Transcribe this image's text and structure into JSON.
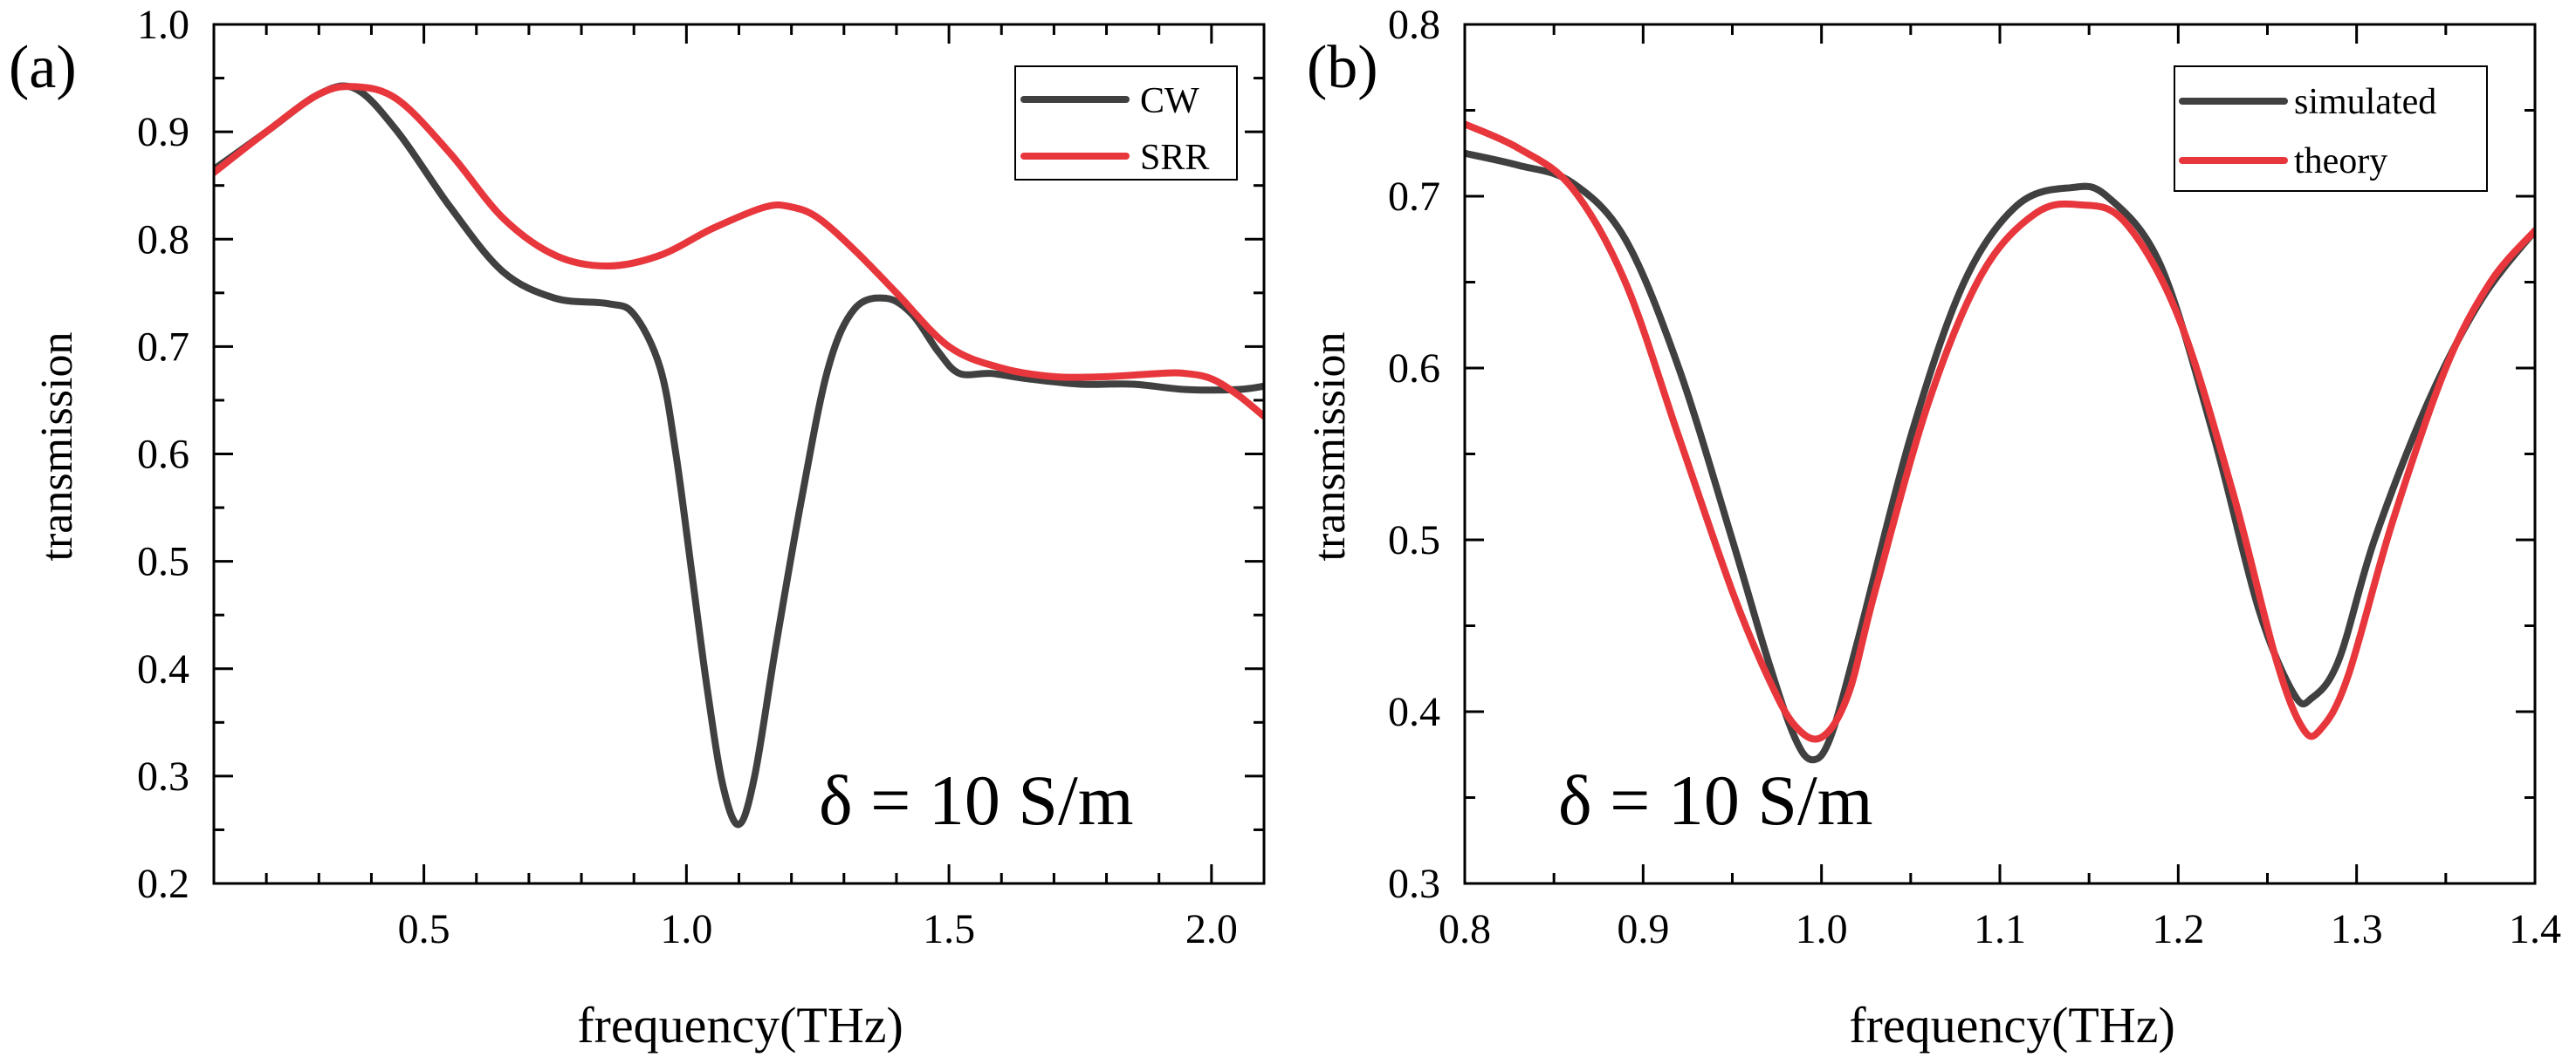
{
  "chart_data": [
    {
      "type": "line",
      "panel_label": "(a)",
      "xlabel": "frequency(THz)",
      "ylabel": "transmission",
      "xlim": [
        0.1,
        2.1
      ],
      "ylim": [
        0.2,
        1.0
      ],
      "xticks": [
        0.5,
        1.0,
        1.5,
        2.0
      ],
      "xtick_labels": [
        "0.5",
        "1.0",
        "1.5",
        "2.0"
      ],
      "yticks": [
        0.2,
        0.3,
        0.4,
        0.5,
        0.6,
        0.7,
        0.8,
        0.9,
        1.0
      ],
      "ytick_labels": [
        "0.2",
        "0.3",
        "0.4",
        "0.5",
        "0.6",
        "0.7",
        "0.8",
        "0.9",
        "1.0"
      ],
      "annotation": "δ = 10 S/m",
      "legend_position": "top-right",
      "series": [
        {
          "name": "CW",
          "color": "#404040",
          "x": [
            0.1,
            0.2,
            0.3,
            0.37,
            0.45,
            0.55,
            0.65,
            0.75,
            0.85,
            0.9,
            0.95,
            0.98,
            1.01,
            1.04,
            1.07,
            1.1,
            1.13,
            1.17,
            1.22,
            1.27,
            1.32,
            1.38,
            1.43,
            1.48,
            1.52,
            1.58,
            1.65,
            1.75,
            1.85,
            1.95,
            2.05,
            2.1
          ],
          "y": [
            0.865,
            0.9,
            0.935,
            0.94,
            0.9,
            0.83,
            0.77,
            0.745,
            0.74,
            0.73,
            0.68,
            0.6,
            0.49,
            0.38,
            0.29,
            0.255,
            0.3,
            0.42,
            0.56,
            0.68,
            0.735,
            0.745,
            0.73,
            0.695,
            0.675,
            0.675,
            0.67,
            0.665,
            0.665,
            0.66,
            0.66,
            0.663
          ]
        },
        {
          "name": "SRR",
          "color": "#e8373c",
          "x": [
            0.1,
            0.2,
            0.3,
            0.37,
            0.45,
            0.55,
            0.65,
            0.75,
            0.85,
            0.95,
            1.05,
            1.15,
            1.2,
            1.25,
            1.32,
            1.4,
            1.5,
            1.6,
            1.7,
            1.8,
            1.9,
            1.95,
            2.0,
            2.05,
            2.1
          ],
          "y": [
            0.862,
            0.9,
            0.935,
            0.942,
            0.93,
            0.88,
            0.82,
            0.785,
            0.775,
            0.785,
            0.81,
            0.83,
            0.83,
            0.82,
            0.79,
            0.75,
            0.7,
            0.68,
            0.672,
            0.672,
            0.675,
            0.675,
            0.67,
            0.655,
            0.635
          ]
        }
      ]
    },
    {
      "type": "line",
      "panel_label": "(b)",
      "xlabel": "frequency(THz)",
      "ylabel": "transmission",
      "xlim": [
        0.8,
        1.4
      ],
      "ylim": [
        0.3,
        0.8
      ],
      "xticks": [
        0.8,
        0.9,
        1.0,
        1.1,
        1.2,
        1.3,
        1.4
      ],
      "xtick_labels": [
        "0.8",
        "0.9",
        "1.0",
        "1.1",
        "1.2",
        "1.3",
        "1.4"
      ],
      "yticks": [
        0.3,
        0.4,
        0.5,
        0.6,
        0.7,
        0.8
      ],
      "ytick_labels": [
        "0.3",
        "0.4",
        "0.5",
        "0.6",
        "0.7",
        "0.8"
      ],
      "annotation": "δ = 10 S/m",
      "legend_position": "top-right",
      "series": [
        {
          "name": "simulated",
          "color": "#404040",
          "x": [
            0.8,
            0.83,
            0.86,
            0.89,
            0.92,
            0.95,
            0.97,
            0.985,
            0.995,
            1.005,
            1.02,
            1.05,
            1.08,
            1.11,
            1.14,
            1.16,
            1.19,
            1.22,
            1.245,
            1.265,
            1.275,
            1.29,
            1.31,
            1.34,
            1.37,
            1.4
          ],
          "y": [
            0.725,
            0.718,
            0.708,
            0.675,
            0.6,
            0.5,
            0.43,
            0.385,
            0.372,
            0.385,
            0.44,
            0.56,
            0.65,
            0.695,
            0.705,
            0.7,
            0.66,
            0.56,
            0.46,
            0.41,
            0.408,
            0.43,
            0.5,
            0.58,
            0.64,
            0.68
          ]
        },
        {
          "name": "theory",
          "color": "#e8373c",
          "x": [
            0.8,
            0.83,
            0.86,
            0.89,
            0.92,
            0.95,
            0.97,
            0.985,
            1.0,
            1.015,
            1.03,
            1.06,
            1.09,
            1.12,
            1.145,
            1.17,
            1.2,
            1.23,
            1.255,
            1.27,
            1.28,
            1.295,
            1.32,
            1.35,
            1.375,
            1.4
          ],
          "y": [
            0.742,
            0.728,
            0.705,
            0.65,
            0.56,
            0.47,
            0.42,
            0.392,
            0.385,
            0.41,
            0.47,
            0.58,
            0.655,
            0.69,
            0.695,
            0.685,
            0.63,
            0.53,
            0.43,
            0.39,
            0.39,
            0.42,
            0.51,
            0.6,
            0.65,
            0.68
          ]
        }
      ]
    }
  ]
}
